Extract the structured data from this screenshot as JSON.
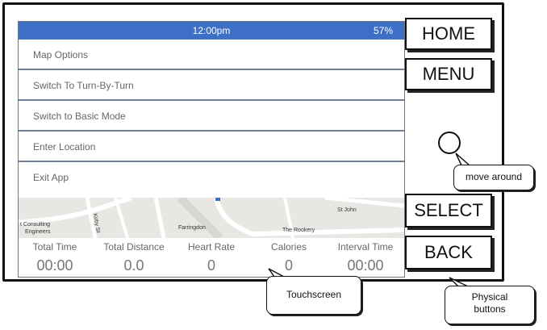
{
  "status_bar": {
    "time": "12:00pm",
    "battery": "57%"
  },
  "menu": {
    "items": [
      {
        "label": "Map Options"
      },
      {
        "label": "Switch To Turn-By-Turn"
      },
      {
        "label": "Switch to Basic Mode"
      },
      {
        "label": "Enter Location"
      },
      {
        "label": "Exit App"
      }
    ]
  },
  "map": {
    "labels": [
      "t Consulting",
      "Engineers",
      "Kirby St",
      "Farringdon",
      "The Rookery",
      "St John"
    ]
  },
  "stats": [
    {
      "label": "Total Time",
      "value": "00:00"
    },
    {
      "label": "Total Distance",
      "value": "0.0"
    },
    {
      "label": "Heart Rate",
      "value": "0"
    },
    {
      "label": "Calories",
      "value": "0"
    },
    {
      "label": "Interval Time",
      "value": "00:00"
    }
  ],
  "buttons": {
    "home": "HOME",
    "menu": "MENU",
    "select": "SELECT",
    "back": "BACK"
  },
  "callouts": {
    "move_around": "move around",
    "touchscreen": "Touchscreen",
    "physical_buttons": "Physical buttons"
  },
  "colors": {
    "status_bar": "#3d6fc6",
    "divider": "#6b7d97"
  }
}
